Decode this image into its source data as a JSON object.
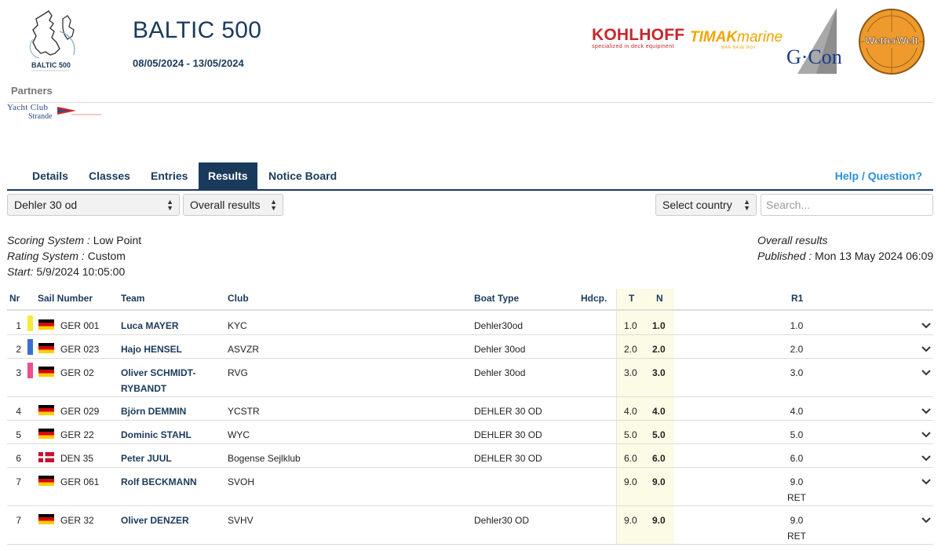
{
  "event": {
    "title": "BALTIC 500",
    "dates": "08/05/2024 - 13/05/2024",
    "logo_text": "BALTIC 500"
  },
  "sponsors": {
    "kohlhoff": {
      "name": "KOHLHOFF",
      "tagline": "specialized in deck equipment"
    },
    "timak": {
      "name_bold": "TIMAK",
      "name_rest": "marine",
      "tagline": "MAR-BASE BOX"
    },
    "gcon": {
      "name": "G·Con"
    },
    "wetterwelt": {
      "name": "WetterWelt"
    }
  },
  "partners": {
    "label": "Partners",
    "yacht_club_line1": "Yacht Club",
    "yacht_club_line2": "Strande"
  },
  "tabs": [
    {
      "label": "Details"
    },
    {
      "label": "Classes"
    },
    {
      "label": "Entries"
    },
    {
      "label": "Results"
    },
    {
      "label": "Notice Board"
    }
  ],
  "help_label": "Help / Question?",
  "filters": {
    "class_select": "Dehler 30 od",
    "result_select": "Overall results",
    "country_select": "Select country",
    "search_placeholder": "Search..."
  },
  "info": {
    "scoring_label": "Scoring System :",
    "scoring_value": "Low Point",
    "rating_label": "Rating System :",
    "rating_value": "Custom",
    "start_label": "Start:",
    "start_value": "5/9/2024 10:05:00",
    "results_type": "Overall results",
    "published_label": "Published :",
    "published_value": "Mon 13 May 2024 06:09"
  },
  "table": {
    "headers": {
      "nr": "Nr",
      "sail": "Sail Number",
      "team": "Team",
      "club": "Club",
      "boat": "Boat Type",
      "hdcp": "Hdcp.",
      "t": "T",
      "n": "N",
      "r1": "R1"
    },
    "rows": [
      {
        "nr": "1",
        "color": "#f4ea3a",
        "flag": "GER",
        "sail": "GER 001",
        "team1": "Luca MAYER",
        "team2": "",
        "club": "KYC",
        "boat": "Dehler30od",
        "t": "1.0",
        "n": "1.0",
        "r1": "1.0",
        "r1_note": ""
      },
      {
        "nr": "2",
        "color": "#3a6fd0",
        "flag": "GER",
        "sail": "GER 023",
        "team1": "Hajo HENSEL",
        "team2": "",
        "club": "ASVZR",
        "boat": "Dehler 30od",
        "t": "2.0",
        "n": "2.0",
        "r1": "2.0",
        "r1_note": ""
      },
      {
        "nr": "3",
        "color": "#ec4f8f",
        "flag": "GER",
        "sail": "GER 02",
        "team1": "Oliver SCHMIDT-",
        "team2": "RYBANDT",
        "club": "RVG",
        "boat": "Dehler 30od",
        "t": "3.0",
        "n": "3.0",
        "r1": "3.0",
        "r1_note": ""
      },
      {
        "nr": "4",
        "color": "",
        "flag": "GER",
        "sail": "GER 029",
        "team1": "Björn DEMMIN",
        "team2": "",
        "club": "YCSTR",
        "boat": "DEHLER 30 OD",
        "t": "4.0",
        "n": "4.0",
        "r1": "4.0",
        "r1_note": ""
      },
      {
        "nr": "5",
        "color": "",
        "flag": "GER",
        "sail": "GER 22",
        "team1": "Dominic STAHL",
        "team2": "",
        "club": "WYC",
        "boat": "DEHLER 30 OD",
        "t": "5.0",
        "n": "5.0",
        "r1": "5.0",
        "r1_note": ""
      },
      {
        "nr": "6",
        "color": "",
        "flag": "DEN",
        "sail": "DEN 35",
        "team1": "Peter JUUL",
        "team2": "",
        "club": "Bogense Sejlklub",
        "boat": "DEHLER 30 OD",
        "t": "6.0",
        "n": "6.0",
        "r1": "6.0",
        "r1_note": ""
      },
      {
        "nr": "7",
        "color": "",
        "flag": "GER",
        "sail": "GER 061",
        "team1": "Rolf BECKMANN",
        "team2": "",
        "club": "SVOH",
        "boat": "",
        "t": "9.0",
        "n": "9.0",
        "r1": "9.0",
        "r1_note": "RET"
      },
      {
        "nr": "7",
        "color": "",
        "flag": "GER",
        "sail": "GER 32",
        "team1": "Oliver DENZER",
        "team2": "",
        "club": "SVHV",
        "boat": "Dehler30 OD",
        "t": "9.0",
        "n": "9.0",
        "r1": "9.0",
        "r1_note": "RET"
      }
    ]
  }
}
